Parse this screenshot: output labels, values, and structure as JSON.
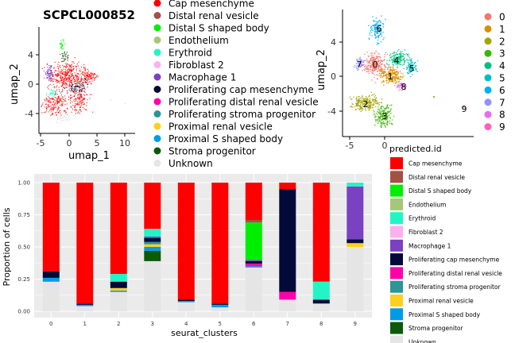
{
  "colors": {
    "Cap mesenchyme": "#ff0000",
    "Distal renal vesicle": "#a65045",
    "Distal S shaped body": "#00ee00",
    "Endothelium": "#a5c878",
    "Erythroid": "#22f5c5",
    "Fibroblast 2": "#fdb0f0",
    "Macrophage 1": "#7b41c3",
    "Proliferating cap mesenchyme": "#030a3a",
    "Proliferating distal renal vesicle": "#ff00aa",
    "Proliferating stroma progenitor": "#2a9696",
    "Proximal renal vesicle": "#fcd11d",
    "Proximal S shaped body": "#009be6",
    "Stroma progenitor": "#0a5a0a",
    "Unknown": "#e5e5e5"
  },
  "topleft": {
    "title": "SCPCL000852",
    "xlabel": "umap_1",
    "ylabel": "umap_2",
    "xticks": [
      "-5",
      "0",
      "5",
      "10"
    ],
    "yticks": [
      "4",
      "0",
      "-4"
    ],
    "legend_items": [
      "Cap mesenchyme",
      "Distal renal vesicle",
      "Distal S shaped body",
      "Endothelium",
      "Erythroid",
      "Fibroblast 2",
      "Macrophage 1",
      "Proliferating cap mesenchyme",
      "Proliferating distal renal vesicle",
      "Proliferating stroma progenitor",
      "Proximal renal vesicle",
      "Proximal S shaped body",
      "Stroma progenitor",
      "Unknown"
    ]
  },
  "topright": {
    "ylabel": "umap_2",
    "xticks": [
      "-5",
      "0"
    ],
    "yticks": [
      "4",
      "0",
      "-4"
    ],
    "cluster_legend": [
      "0",
      "1",
      "2",
      "3",
      "4",
      "5",
      "6",
      "7",
      "8",
      "9"
    ],
    "cluster_colors": [
      "#f8766d",
      "#d89000",
      "#a3a500",
      "#39b600",
      "#00bf7d",
      "#00bfc4",
      "#00b0f6",
      "#9590ff",
      "#e76bf3",
      "#ff62bc"
    ]
  },
  "chart_data": {
    "type": "bar",
    "stacked": true,
    "xlabel": "seurat_clusters",
    "ylabel": "Proportion of cells",
    "legend_title": "predicted.id",
    "ylim": [
      0,
      1
    ],
    "yticks": [
      "0.00",
      "0.25",
      "0.50",
      "0.75",
      "1.00"
    ],
    "categories": [
      "0",
      "1",
      "2",
      "3",
      "4",
      "5",
      "6",
      "7",
      "8",
      "9"
    ],
    "series": [
      {
        "name": "Unknown",
        "values": [
          0.23,
          0.04,
          0.15,
          0.39,
          0.07,
          0.03,
          0.34,
          0.09,
          0.06,
          0.5
        ]
      },
      {
        "name": "Stroma progenitor",
        "values": [
          0,
          0,
          0,
          0.08,
          0,
          0,
          0,
          0,
          0,
          0
        ]
      },
      {
        "name": "Proximal S shaped body",
        "values": [
          0.03,
          0.01,
          0.01,
          0.03,
          0.01,
          0.02,
          0.01,
          0,
          0,
          0
        ]
      },
      {
        "name": "Proximal renal vesicle",
        "values": [
          0,
          0,
          0.02,
          0.02,
          0,
          0,
          0,
          0,
          0,
          0.03
        ]
      },
      {
        "name": "Proliferating stroma progenitor",
        "values": [
          0,
          0,
          0,
          0.02,
          0,
          0,
          0,
          0,
          0,
          0
        ]
      },
      {
        "name": "Proliferating distal renal vesicle",
        "values": [
          0,
          0,
          0,
          0,
          0,
          0,
          0.02,
          0.06,
          0,
          0
        ]
      },
      {
        "name": "Proliferating cap mesenchyme",
        "values": [
          0.05,
          0.01,
          0.05,
          0.03,
          0.01,
          0.01,
          0.02,
          0.8,
          0.03,
          0.03
        ]
      },
      {
        "name": "Macrophage 1",
        "values": [
          0,
          0,
          0,
          0.01,
          0,
          0,
          0.01,
          0,
          0,
          0.41
        ]
      },
      {
        "name": "Erythroid",
        "values": [
          0,
          0,
          0.06,
          0.06,
          0,
          0,
          0,
          0,
          0.14,
          0.03
        ]
      },
      {
        "name": "Distal S shaped body",
        "values": [
          0,
          0,
          0,
          0,
          0,
          0,
          0.29,
          0,
          0,
          0
        ]
      },
      {
        "name": "Distal renal vesicle",
        "values": [
          0,
          0,
          0,
          0,
          0,
          0,
          0.02,
          0,
          0,
          0
        ]
      },
      {
        "name": "Cap mesenchyme",
        "values": [
          0.69,
          0.94,
          0.71,
          0.36,
          0.91,
          0.94,
          0.29,
          0.05,
          0.77,
          0
        ]
      }
    ]
  }
}
